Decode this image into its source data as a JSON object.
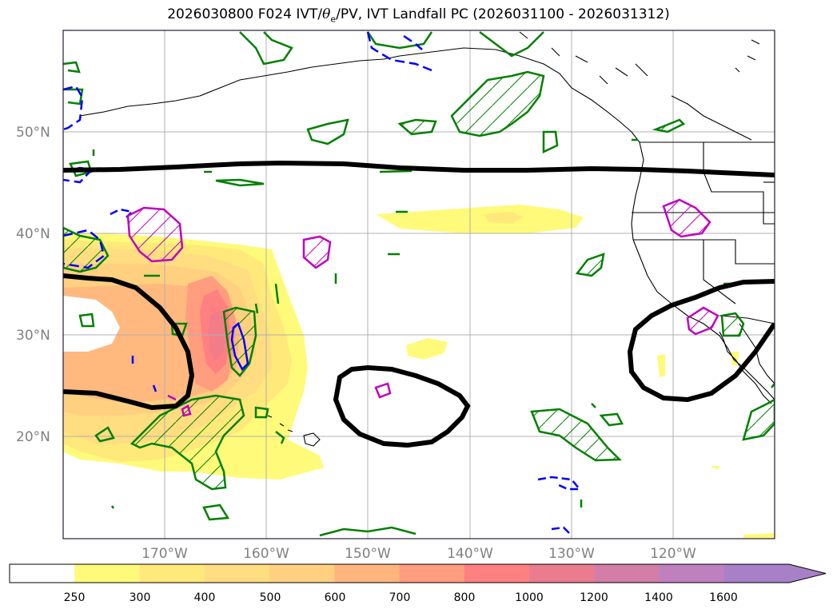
{
  "title": {
    "prefix": "2026030800 F024 IVT/",
    "symbol": "θ",
    "subscript": "e",
    "suffix": "/PV, IVT Landfall PC (2026031100 - 2026031312)"
  },
  "map": {
    "lat_labels": [
      "50°N",
      "40°N",
      "30°N",
      "20°N"
    ],
    "lon_labels": [
      "170°W",
      "160°W",
      "150°W",
      "140°W",
      "130°W",
      "120°W"
    ],
    "lat_values": [
      50,
      40,
      30,
      20
    ],
    "lon_values": [
      -170,
      -160,
      -150,
      -140,
      -130,
      -120
    ],
    "lat_range": [
      10,
      60
    ],
    "lon_range": [
      -180,
      -110
    ]
  },
  "colorbar": {
    "labels": [
      "250",
      "300",
      "400",
      "500",
      "600",
      "700",
      "800",
      "1000",
      "1200",
      "1400",
      "1600"
    ],
    "colors": [
      "#ffffff",
      "#fffa7a",
      "#ffe97a",
      "#ffdd80",
      "#ffd080",
      "#ffb57e",
      "#ff9d7e",
      "#ff8080",
      "#ea7c8e",
      "#d27ea6",
      "#c080c0",
      "#a880c8"
    ],
    "extend": "max"
  },
  "colors": {
    "thick_contour": "#000000",
    "green_contour": "#008000",
    "blue_contour": "#0000ff",
    "magenta_contour": "#c000c0",
    "grid": "#b0b0b0",
    "frame": "#2a1a3a"
  }
}
